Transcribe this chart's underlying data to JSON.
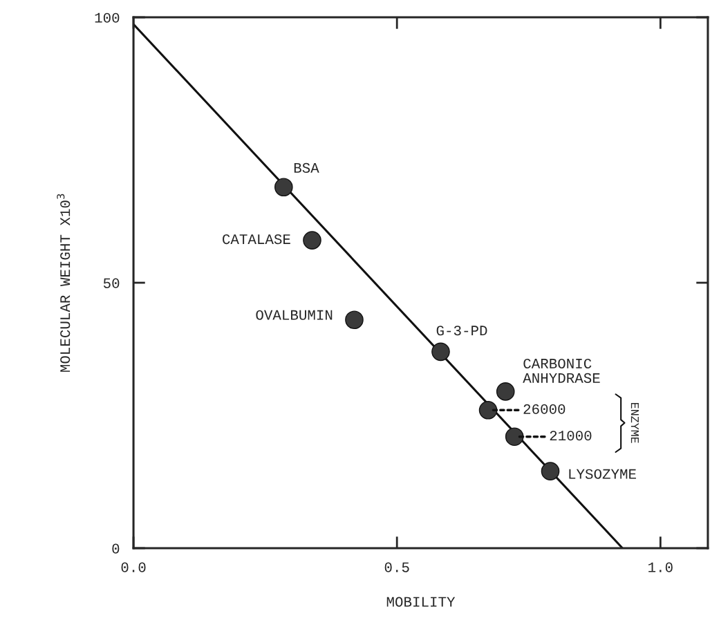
{
  "chart_data": {
    "type": "scatter",
    "xlabel": "MOBILITY",
    "ylabel": "MOLECULAR WEIGHT X10$^{3}$",
    "xlim": [
      0,
      1.09
    ],
    "ylim": [
      0,
      100
    ],
    "xticks": [
      {
        "value": 0,
        "label": "0.0"
      },
      {
        "value": 0.5,
        "label": "0.5"
      },
      {
        "value": 1.0,
        "label": "1.0"
      }
    ],
    "yticks": [
      0,
      50,
      100
    ],
    "grid": false,
    "legend": false,
    "series": [
      {
        "type": "scatter",
        "marker": "circle",
        "color": "#3a3a3a",
        "x": [
          0.285,
          0.339,
          0.419,
          0.583,
          0.706,
          0.673,
          0.723,
          0.791
        ],
        "values": [
          68,
          58,
          43,
          37,
          29.5,
          26,
          21,
          14.5
        ]
      },
      {
        "type": "line",
        "marker": "none",
        "color": "#111111",
        "x": [
          0,
          0.928
        ],
        "values": [
          98.7,
          0
        ]
      }
    ],
    "annotations": [
      {
        "text": "BSA",
        "x": 0.285,
        "y": 68
      },
      {
        "text": "CATALASE",
        "x": 0.339,
        "y": 58
      },
      {
        "text": "OVALBUMIN",
        "x": 0.419,
        "y": 43
      },
      {
        "text": "G-3-PD",
        "x": 0.583,
        "y": 37
      },
      {
        "text": "CARBONIC\nANHYDRASE",
        "x": 0.706,
        "y": 29.5
      },
      {
        "text": "26000",
        "x": 0.673,
        "y": 26
      },
      {
        "text": "21000",
        "x": 0.723,
        "y": 21
      },
      {
        "text": "LYSOZYME",
        "x": 0.791,
        "y": 14.5
      },
      "ENZYME"
    ]
  }
}
